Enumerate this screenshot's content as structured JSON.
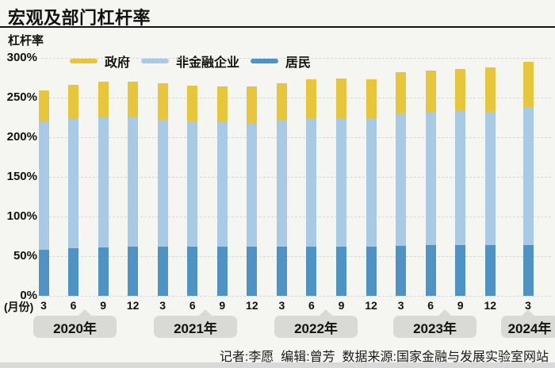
{
  "header": {
    "title": "宏观及部门杠杆率"
  },
  "footer": {
    "credits": "记者:李愿  编辑:曾芳  数据来源:国家金融与发展实验室网站"
  },
  "colors": {
    "government": "#e8c63c",
    "nonfinancial": "#a9cae4",
    "residents": "#4f93c5",
    "pill_gray": "#d9d9d6",
    "background": "#f5f5f2"
  },
  "legend": [
    {
      "key": "government",
      "label": "政府",
      "color": "#e8c63c"
    },
    {
      "key": "nonfinancial",
      "label": "非金融企业",
      "color": "#a9cae4"
    },
    {
      "key": "residents",
      "label": "居民",
      "color": "#4f93c5"
    }
  ],
  "chart_data": {
    "type": "bar",
    "stacked": true,
    "title": "宏观及部门杠杆率",
    "ylabel": "杠杆率",
    "x_unit_label": "(月份)",
    "ylim": [
      0,
      300
    ],
    "y_ticks": [
      "300%",
      "250%",
      "200%",
      "150%",
      "100%",
      "50%",
      "0%"
    ],
    "grid": "dashed-horizontal",
    "legend_position": "top",
    "months": [
      "3",
      "6",
      "9",
      "12",
      "3",
      "6",
      "9",
      "12",
      "3",
      "6",
      "9",
      "12",
      "3",
      "6",
      "9",
      "12",
      "3"
    ],
    "year_groups": [
      {
        "label": "2020年",
        "months_count": 4
      },
      {
        "label": "2021年",
        "months_count": 4
      },
      {
        "label": "2022年",
        "months_count": 4
      },
      {
        "label": "2023年",
        "months_count": 4
      },
      {
        "label": "2024年",
        "months_count": 1
      }
    ],
    "series": [
      {
        "name": "居民",
        "key": "residents",
        "color": "#4f93c5",
        "stack_order": 1,
        "values": [
          57.7,
          59.7,
          61.4,
          62.2,
          62.1,
          62.0,
          62.1,
          62.2,
          62.1,
          62.3,
          62.4,
          61.9,
          63.3,
          63.5,
          63.8,
          63.5,
          64.0
        ]
      },
      {
        "name": "非金融企业",
        "key": "nonfinancial",
        "color": "#a9cae4",
        "stack_order": 2,
        "values": [
          161.4,
          163.4,
          164.0,
          162.3,
          160.3,
          157.9,
          156.5,
          154.8,
          158.9,
          161.3,
          160.9,
          160.9,
          167.0,
          167.8,
          168.7,
          168.4,
          174.1
        ]
      },
      {
        "name": "政府",
        "key": "government",
        "color": "#e8c63c",
        "stack_order": 3,
        "values": [
          40.2,
          43.3,
          44.7,
          45.6,
          45.4,
          45.5,
          45.8,
          46.8,
          47.2,
          49.5,
          50.6,
          50.4,
          51.5,
          52.6,
          53.7,
          55.9,
          56.7
        ]
      }
    ],
    "totals": [
      259.3,
      266.4,
      270.1,
      270.1,
      267.8,
      265.4,
      264.4,
      263.8,
      268.2,
      273.1,
      273.9,
      273.2,
      281.8,
      283.9,
      286.2,
      287.8,
      294.8
    ]
  }
}
